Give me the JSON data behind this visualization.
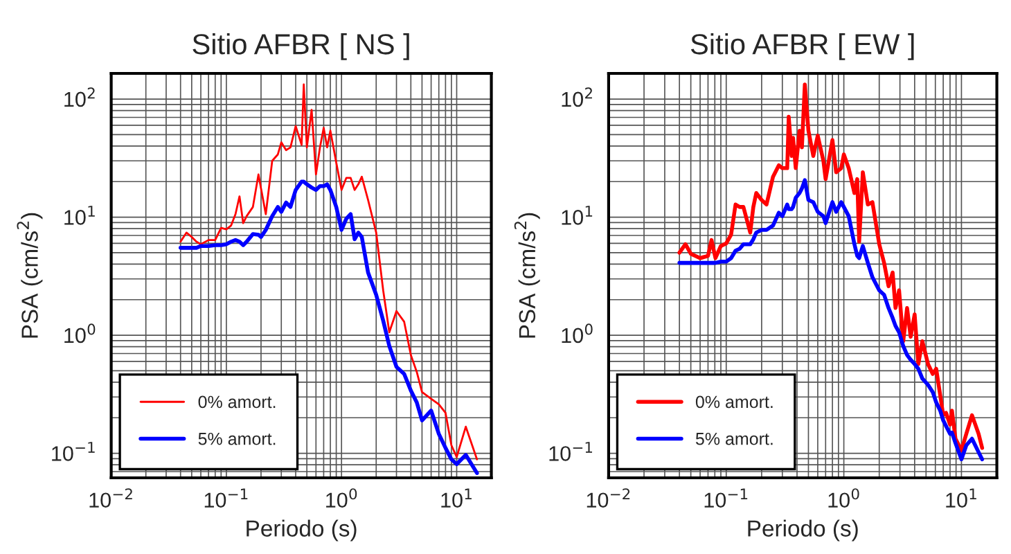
{
  "chart_data": [
    {
      "type": "line",
      "title": "Sitio AFBR [ NS ]",
      "xlabel": "Periodo (s)",
      "ylabel": "PSA (cm/s$^{2}$)",
      "log": "xy",
      "grid": true,
      "legend": "bottom left",
      "xlim": [
        0.01,
        20
      ],
      "ylim": [
        0.062,
        165
      ],
      "xticks": [
        {
          "value": 0.01,
          "label": "10$^{−2}$"
        },
        {
          "value": 0.1,
          "label": "10$^{−1}$"
        },
        {
          "value": 1,
          "label": "10$^{0}$"
        },
        {
          "value": 10,
          "label": "10$^{1}$"
        }
      ],
      "yticks": [
        {
          "value": 0.1,
          "label": "10$^{−1}$"
        },
        {
          "value": 1,
          "label": "10$^{0}$"
        },
        {
          "value": 10,
          "label": "10$^{1}$"
        },
        {
          "value": 100,
          "label": "10$^{2}$"
        }
      ],
      "x": [
        0.04,
        0.045,
        0.05,
        0.055,
        0.06,
        0.07,
        0.08,
        0.09,
        0.1,
        0.11,
        0.12,
        0.13,
        0.14,
        0.15,
        0.17,
        0.19,
        0.2,
        0.22,
        0.25,
        0.28,
        0.3,
        0.33,
        0.36,
        0.4,
        0.45,
        0.47,
        0.5,
        0.55,
        0.6,
        0.65,
        0.7,
        0.75,
        0.8,
        0.9,
        1.0,
        1.1,
        1.2,
        1.3,
        1.4,
        1.5,
        1.7,
        2.0,
        2.3,
        2.6,
        3.0,
        3.5,
        4.0,
        4.5,
        5,
        6,
        7,
        8,
        9,
        10,
        12,
        15
      ],
      "series": [
        {
          "name": "0% amort.",
          "color": "#ff0000",
          "values": [
            6.2,
            7.4,
            6.8,
            6.2,
            5.9,
            6.4,
            6.4,
            8.1,
            7.9,
            8.5,
            10.6,
            15,
            8.9,
            10.2,
            12.2,
            23,
            17.5,
            10.6,
            30,
            34,
            43,
            37,
            39,
            59,
            41,
            133,
            39,
            81,
            23,
            39,
            57,
            39,
            54,
            29,
            17,
            21.5,
            21.5,
            17,
            19,
            22,
            14,
            7.4,
            2.4,
            1.06,
            1.6,
            1.3,
            0.68,
            0.49,
            0.33,
            0.29,
            0.26,
            0.22,
            0.117,
            0.093,
            0.168,
            0.089
          ]
        },
        {
          "name": "5% amort.",
          "color": "#0000ff",
          "values": [
            5.5,
            5.5,
            5.5,
            5.5,
            5.7,
            5.7,
            5.8,
            5.8,
            5.9,
            6.2,
            6.4,
            6.2,
            5.8,
            6.2,
            7.2,
            7.1,
            6.8,
            7.8,
            10.2,
            12.2,
            11.1,
            13.3,
            12.2,
            17,
            20,
            20,
            19,
            17.8,
            17,
            18.3,
            18.3,
            19,
            17,
            12.2,
            7.8,
            9.7,
            10.6,
            6.5,
            7.4,
            6.8,
            3.4,
            2.2,
            1.33,
            0.81,
            0.54,
            0.47,
            0.34,
            0.27,
            0.19,
            0.23,
            0.146,
            0.111,
            0.089,
            0.081,
            0.097,
            0.068
          ]
        }
      ]
    },
    {
      "type": "line",
      "title": "Sitio AFBR [ EW ]",
      "xlabel": "Periodo (s)",
      "ylabel": "PSA (cm/s$^{2}$)",
      "log": "xy",
      "grid": true,
      "legend": "bottom left",
      "xlim": [
        0.01,
        20
      ],
      "ylim": [
        0.062,
        165
      ],
      "xticks": [
        {
          "value": 0.01,
          "label": "10$^{−2}$"
        },
        {
          "value": 0.1,
          "label": "10$^{−1}$"
        },
        {
          "value": 1,
          "label": "10$^{0}$"
        },
        {
          "value": 10,
          "label": "10$^{1}$"
        }
      ],
      "yticks": [
        {
          "value": 0.1,
          "label": "10$^{−1}$"
        },
        {
          "value": 1,
          "label": "10$^{0}$"
        },
        {
          "value": 10,
          "label": "10$^{1}$"
        },
        {
          "value": 100,
          "label": "10$^{2}$"
        }
      ],
      "x": [
        0.04,
        0.045,
        0.05,
        0.06,
        0.07,
        0.075,
        0.081,
        0.09,
        0.1,
        0.11,
        0.12,
        0.13,
        0.14,
        0.16,
        0.17,
        0.18,
        0.2,
        0.22,
        0.25,
        0.28,
        0.3,
        0.33,
        0.34,
        0.36,
        0.37,
        0.39,
        0.42,
        0.44,
        0.466,
        0.5,
        0.55,
        0.6,
        0.67,
        0.7,
        0.8,
        0.86,
        0.95,
        1.0,
        1.1,
        1.23,
        1.3,
        1.35,
        1.45,
        1.6,
        1.75,
        2.0,
        2.2,
        2.4,
        2.6,
        2.75,
        2.95,
        3.2,
        3.45,
        3.7,
        4.0,
        4.3,
        4.65,
        5.2,
        5.7,
        6.1,
        6.6,
        7.0,
        7.4,
        8.0,
        8.3,
        8.9,
        10,
        11,
        12.3,
        14,
        15
      ],
      "series": [
        {
          "name": "0% amort.",
          "color": "#ff0000",
          "values": [
            5.0,
            5.9,
            4.9,
            4.5,
            4.7,
            6.4,
            4.5,
            5.7,
            6.0,
            7.1,
            12.8,
            12.2,
            12.2,
            7.4,
            12.2,
            16,
            14,
            12.8,
            22,
            27.5,
            26,
            26,
            71,
            33,
            47,
            26,
            54,
            39,
            133,
            54,
            33,
            49,
            30,
            21,
            45,
            24,
            26,
            34,
            26,
            16,
            21,
            6.2,
            24,
            12.8,
            13.4,
            5.9,
            4.1,
            2.6,
            3.4,
            1.7,
            2.4,
            0.89,
            1.7,
            0.97,
            1.5,
            0.57,
            0.89,
            0.57,
            0.47,
            0.52,
            0.31,
            0.21,
            0.22,
            0.175,
            0.23,
            0.133,
            0.106,
            0.146,
            0.21,
            0.146,
            0.111
          ]
        },
        {
          "name": "5% amort.",
          "color": "#0000ff",
          "values": [
            4.1,
            4.1,
            4.1,
            4.1,
            4.1,
            4.1,
            4.1,
            4.2,
            4.2,
            4.5,
            5.2,
            5.4,
            5.9,
            5.9,
            6.5,
            7.4,
            7.8,
            7.8,
            8.5,
            10.9,
            10.2,
            12.8,
            11.7,
            11.7,
            12.2,
            14.6,
            16,
            17.5,
            20.6,
            14,
            13.4,
            11.1,
            10.2,
            8.9,
            13.4,
            11.1,
            13.4,
            12.2,
            10.2,
            5.9,
            4.7,
            4.5,
            5.7,
            4.1,
            3.1,
            2.4,
            2.2,
            1.7,
            1.4,
            1.2,
            1.06,
            0.81,
            0.68,
            0.62,
            0.57,
            0.52,
            0.43,
            0.38,
            0.33,
            0.27,
            0.23,
            0.19,
            0.17,
            0.146,
            0.15,
            0.122,
            0.089,
            0.117,
            0.133,
            0.102,
            0.089
          ]
        }
      ]
    }
  ]
}
